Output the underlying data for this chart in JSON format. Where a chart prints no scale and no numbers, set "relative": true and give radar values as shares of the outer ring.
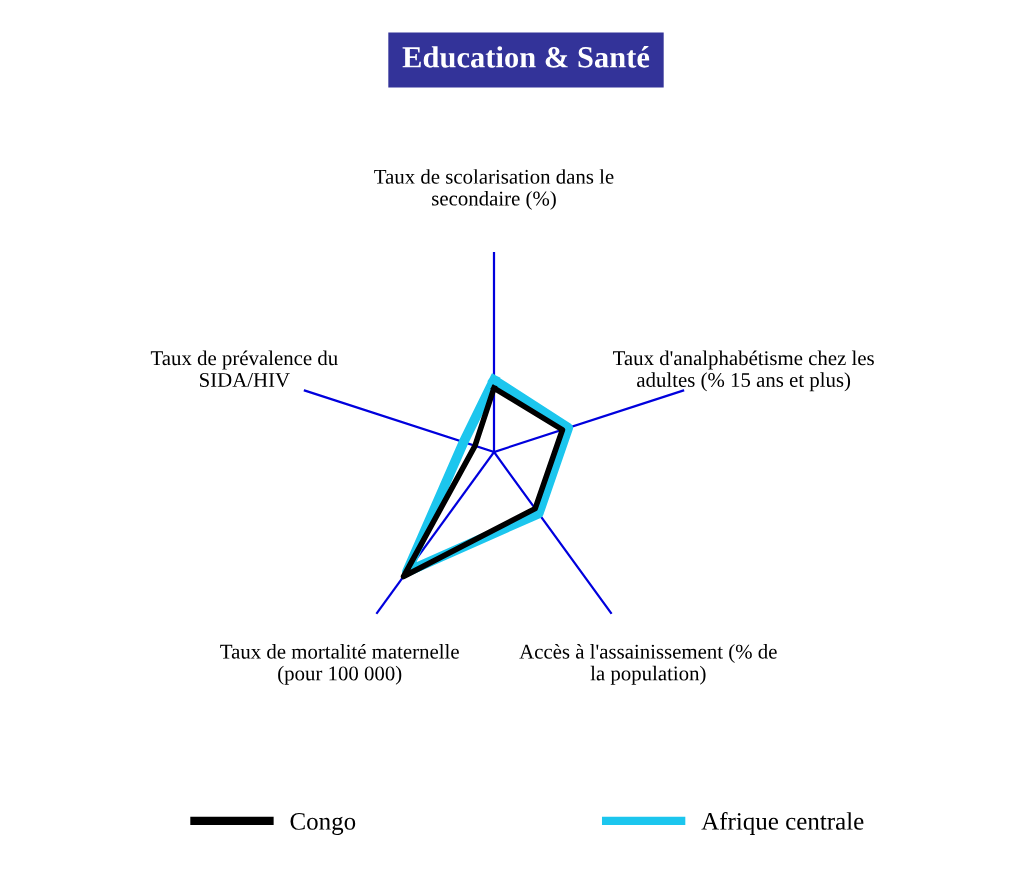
{
  "chart_data": {
    "type": "radar",
    "title": "Education & Santé",
    "relative": true,
    "categories": [
      "Taux de scolarisation dans le\nsecondaire (%)",
      "Taux d'analphabétisme chez les\nadultes (% 15 ans et plus)",
      "Accès à l'assainissement (% de\nla population)",
      "Taux de mortalité maternelle\n(pour 100 000)",
      "Taux de prévalence du\nSIDA/HIV"
    ],
    "series": [
      {
        "name": "Congo",
        "color": "#000000",
        "values": [
          0.32,
          0.36,
          0.35,
          0.77,
          0.1
        ]
      },
      {
        "name": "Afrique centrale",
        "color": "#1cc6ee",
        "values": [
          0.36,
          0.39,
          0.38,
          0.74,
          0.16
        ]
      }
    ],
    "legend": "bottom",
    "grid": "x",
    "marker": "none",
    "line_style": "solid"
  }
}
